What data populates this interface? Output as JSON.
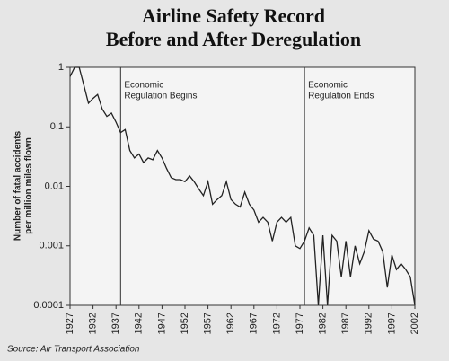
{
  "chart_data": {
    "type": "line",
    "title": [
      "Airline Safety Record",
      "Before and After Deregulation"
    ],
    "y_label": [
      "Number of fatal accidents",
      "per million miles flown"
    ],
    "source": "Source: Air Transport Association",
    "x": [
      1927,
      1928,
      1929,
      1930,
      1931,
      1932,
      1933,
      1934,
      1935,
      1936,
      1937,
      1938,
      1939,
      1940,
      1941,
      1942,
      1943,
      1944,
      1945,
      1946,
      1947,
      1948,
      1949,
      1950,
      1951,
      1952,
      1953,
      1954,
      1955,
      1956,
      1957,
      1958,
      1959,
      1960,
      1961,
      1962,
      1963,
      1964,
      1965,
      1966,
      1967,
      1968,
      1969,
      1970,
      1971,
      1972,
      1973,
      1974,
      1975,
      1976,
      1977,
      1978,
      1979,
      1980,
      1981,
      1982,
      1983,
      1984,
      1985,
      1986,
      1987,
      1988,
      1989,
      1990,
      1991,
      1992,
      1993,
      1994,
      1995,
      1996,
      1997,
      1998,
      1999,
      2000,
      2001,
      2002
    ],
    "values": [
      0.7,
      1,
      1,
      0.5,
      0.25,
      0.3,
      0.35,
      0.2,
      0.15,
      0.17,
      0.12,
      0.08,
      0.09,
      0.04,
      0.03,
      0.035,
      0.025,
      0.03,
      0.028,
      0.04,
      0.03,
      0.02,
      0.014,
      0.013,
      0.013,
      0.012,
      0.015,
      0.012,
      0.009,
      0.007,
      0.012,
      0.005,
      0.006,
      0.007,
      0.012,
      0.006,
      0.005,
      0.0045,
      0.008,
      0.005,
      0.004,
      0.0025,
      0.003,
      0.0025,
      0.0012,
      0.0025,
      0.003,
      0.0025,
      0.003,
      0.001,
      0.0009,
      0.0012,
      0.002,
      0.0015,
      0.0001,
      0.0015,
      0.0001,
      0.0015,
      0.0012,
      0.0003,
      0.0012,
      0.0003,
      0.001,
      0.0005,
      0.0008,
      0.0018,
      0.0013,
      0.0012,
      0.0008,
      0.0002,
      0.0007,
      0.0004,
      0.0005,
      0.0004,
      0.0003,
      0.0001
    ],
    "color": "#222222",
    "xlim": [
      1927,
      2002
    ],
    "xticks": [
      1927,
      1932,
      1937,
      1942,
      1947,
      1952,
      1957,
      1962,
      1967,
      1972,
      1977,
      1982,
      1987,
      1992,
      1997,
      2002
    ],
    "ylim": [
      0.0001,
      1
    ],
    "yticks": [
      0.0001,
      0.001,
      0.01,
      0.1,
      1
    ],
    "yscale": "log",
    "annotations": [
      {
        "x": 1938,
        "lines": [
          "Economic",
          "Regulation Begins"
        ]
      },
      {
        "x": 1978,
        "lines": [
          "Economic",
          "Regulation Ends"
        ]
      }
    ]
  }
}
